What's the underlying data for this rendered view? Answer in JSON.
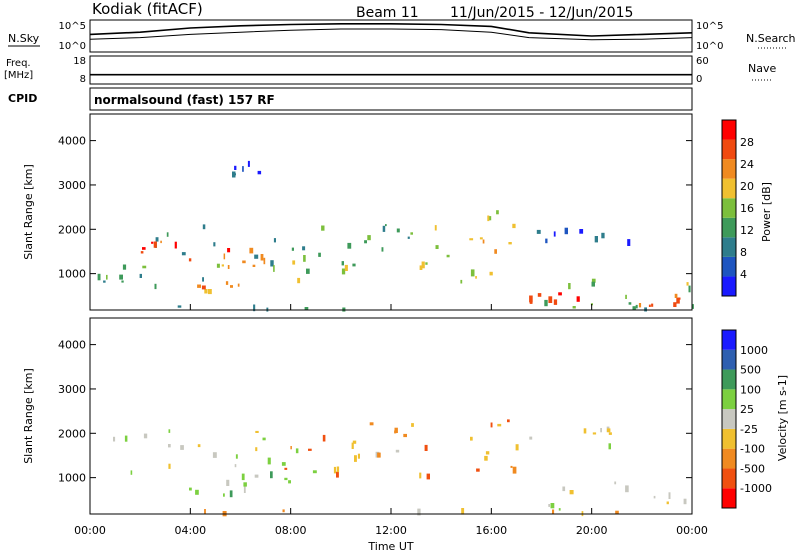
{
  "header": {
    "station": "Kodiak (fitACF)",
    "beam_label": "Beam 11",
    "date_range": "11/Jun/2015 - 12/Jun/2015"
  },
  "colors": {
    "power": [
      "#1a1aff",
      "#1e55c0",
      "#2e7d8c",
      "#3e9a5a",
      "#7cbf3c",
      "#f0c030",
      "#f08a20",
      "#f04a10",
      "#ff0000"
    ],
    "velocity": [
      "#ff0000",
      "#f05010",
      "#f08a20",
      "#f0c030",
      "#c8c8c0",
      "#7cd040",
      "#3e9a5a",
      "#2e5fb0",
      "#1a1aff"
    ]
  },
  "chart_data": [
    {
      "type": "line",
      "panel": "N.Sky / N.Search",
      "left_label": "N.Sky",
      "right_label": "N.Search",
      "left_ticks": [
        "10^5",
        "10^0"
      ],
      "right_ticks": [
        "10^5",
        "10^0"
      ],
      "series": [
        {
          "x": [
            0,
            2,
            4,
            6,
            8,
            10,
            12,
            14,
            16,
            17.5,
            20,
            22,
            24
          ],
          "y": [
            0.55,
            0.62,
            0.75,
            0.82,
            0.86,
            0.88,
            0.88,
            0.86,
            0.8,
            0.6,
            0.5,
            0.55,
            0.6
          ]
        },
        {
          "x": [
            0,
            2,
            4,
            6,
            8,
            10,
            12,
            14,
            16,
            17.5,
            20,
            22,
            24
          ],
          "y": [
            0.4,
            0.45,
            0.55,
            0.62,
            0.68,
            0.72,
            0.72,
            0.7,
            0.62,
            0.45,
            0.38,
            0.4,
            0.45
          ]
        }
      ]
    },
    {
      "type": "line",
      "panel": "Freq / Nave",
      "left_label": "Freq.",
      "left_unit": "[MHz]",
      "right_label": "Nave",
      "left_ticks": [
        "18",
        "8"
      ],
      "right_ticks": [
        "60",
        "0"
      ],
      "series": [
        {
          "x": [
            0,
            24
          ],
          "y": [
            10,
            10
          ]
        }
      ],
      "ylim": [
        6,
        18
      ]
    },
    {
      "type": "text",
      "panel": "CPID",
      "label": "CPID",
      "program": "normalsound (fast) 157 RF"
    },
    {
      "type": "heatmap",
      "panel": "Power",
      "ylabel": "Slant Range [km]",
      "yticks": [
        "1000",
        "2000",
        "3000",
        "4000"
      ],
      "ylim": [
        180,
        4600
      ],
      "xlim": [
        0,
        24
      ],
      "colorbar_label": "Power [dB]",
      "colorbar_ticks": [
        "4",
        "8",
        "12",
        "16",
        "20",
        "24",
        "28"
      ],
      "regions": [
        {
          "t0": 0.5,
          "t1": 9.5,
          "r0": 1100,
          "r1": 2100,
          "level": 3
        },
        {
          "t0": 2.0,
          "t1": 5.5,
          "r0": 1300,
          "r1": 1800,
          "level": 7
        },
        {
          "t0": 5.0,
          "t1": 8.0,
          "r0": 1150,
          "r1": 1650,
          "level": 6
        },
        {
          "t0": 6.5,
          "t1": 10.5,
          "r0": 800,
          "r1": 1400,
          "level": 4
        },
        {
          "t0": 0.0,
          "t1": 5.0,
          "r0": 700,
          "r1": 1000,
          "level": 3
        },
        {
          "t0": 4.0,
          "t1": 6.0,
          "r0": 500,
          "r1": 800,
          "level": 6
        },
        {
          "t0": 10.0,
          "t1": 13.0,
          "r0": 1500,
          "r1": 2400,
          "level": 3
        },
        {
          "t0": 13.0,
          "t1": 15.5,
          "r0": 800,
          "r1": 2100,
          "level": 5
        },
        {
          "t0": 15.5,
          "t1": 17.0,
          "r0": 1000,
          "r1": 2600,
          "level": 5
        },
        {
          "t0": 17.5,
          "t1": 24.0,
          "r0": 250,
          "r1": 900,
          "level": 4
        },
        {
          "t0": 17.5,
          "t1": 19.5,
          "r0": 350,
          "r1": 600,
          "level": 7
        },
        {
          "t0": 21.5,
          "t1": 23.8,
          "r0": 250,
          "r1": 500,
          "level": 7
        },
        {
          "t0": 17.5,
          "t1": 21.5,
          "r0": 1700,
          "r1": 2100,
          "level": 1
        },
        {
          "t0": 5.5,
          "t1": 6.7,
          "r0": 3200,
          "r1": 3500,
          "level": 1
        },
        {
          "t0": 0.0,
          "t1": 24.0,
          "r0": 180,
          "r1": 260,
          "level": 3
        }
      ]
    },
    {
      "type": "heatmap",
      "panel": "Velocity",
      "ylabel": "Slant Range [km]",
      "yticks": [
        "1000",
        "2000",
        "3000",
        "4000"
      ],
      "ylim": [
        180,
        4600
      ],
      "xlim": [
        0,
        24
      ],
      "xticks": [
        "00:00",
        "04:00",
        "08:00",
        "12:00",
        "16:00",
        "20:00",
        "00:00"
      ],
      "xlabel": "Time UT",
      "colorbar_label": "Velocity [m s-1]",
      "colorbar_ticks": [
        "-1000",
        "-500",
        "-100",
        "-25",
        "25",
        "100",
        "500",
        "1000"
      ],
      "regions": [
        {
          "t0": 0.5,
          "t1": 9.5,
          "r0": 1100,
          "r1": 2100,
          "level": 4
        },
        {
          "t0": 5.0,
          "t1": 8.0,
          "r0": 900,
          "r1": 1500,
          "level": 5
        },
        {
          "t0": 3.5,
          "t1": 6.5,
          "r0": 600,
          "r1": 900,
          "level": 5
        },
        {
          "t0": 7.5,
          "t1": 11.0,
          "r0": 1000,
          "r1": 1900,
          "level": 2
        },
        {
          "t0": 13.0,
          "t1": 17.0,
          "r0": 1000,
          "r1": 2600,
          "level": 2
        },
        {
          "t0": 10.0,
          "t1": 13.0,
          "r0": 1500,
          "r1": 2400,
          "level": 3
        },
        {
          "t0": 17.5,
          "t1": 24.0,
          "r0": 250,
          "r1": 900,
          "level": 4
        },
        {
          "t0": 17.5,
          "t1": 21.5,
          "r0": 1700,
          "r1": 2100,
          "level": 4
        },
        {
          "t0": 0.0,
          "t1": 24.0,
          "r0": 180,
          "r1": 260,
          "level": 3
        }
      ]
    }
  ]
}
